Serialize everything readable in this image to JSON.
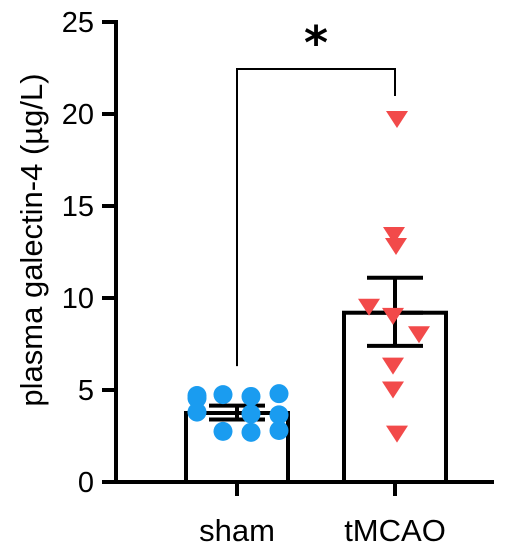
{
  "chart_data": {
    "type": "bar",
    "ylabel": "plasma galectin-4 (µg/L)",
    "xlabel": "",
    "ylim": [
      0,
      25
    ],
    "yticks": [
      0,
      5,
      10,
      15,
      20,
      25
    ],
    "categories": [
      "sham",
      "tMCAO"
    ],
    "grid": false,
    "legend": "none",
    "series": [
      {
        "category": "sham",
        "mean": 3.75,
        "sem_low": 3.4,
        "sem_high": 4.15,
        "marker": "circle",
        "color": "#1a9cf0",
        "points": [
          4.7,
          4.75,
          4.65,
          4.8,
          4.55,
          3.7,
          3.65,
          3.8,
          2.75,
          2.7,
          2.8
        ]
      },
      {
        "category": "tMCAO",
        "mean": 9.2,
        "sem_low": 7.4,
        "sem_high": 11.1,
        "marker": "triangle-down",
        "color": "#f24a4a",
        "points": [
          19.7,
          13.4,
          12.8,
          9.5,
          9.0,
          8.0,
          6.3,
          5.0,
          2.6
        ]
      }
    ],
    "annotations": [
      {
        "type": "significance-bracket",
        "between": [
          "sham",
          "tMCAO"
        ],
        "label": "*"
      }
    ]
  }
}
